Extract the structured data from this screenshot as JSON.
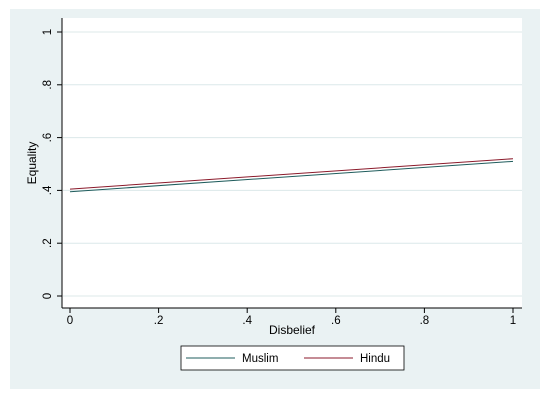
{
  "chart_data": {
    "type": "line",
    "title": "",
    "xlabel": "Disbelief",
    "ylabel": "Equality",
    "xlim": [
      0,
      1
    ],
    "ylim": [
      0,
      1
    ],
    "x_ticks": [
      0,
      0.2,
      0.4,
      0.6,
      0.8,
      1
    ],
    "x_tick_labels": [
      "0",
      ".2",
      ".4",
      ".6",
      ".8",
      "1"
    ],
    "y_ticks": [
      0,
      0.2,
      0.4,
      0.6,
      0.8,
      1
    ],
    "y_tick_labels": [
      "0",
      ".2",
      ".4",
      ".6",
      ".8",
      "1"
    ],
    "grid": true,
    "legend_position": "bottom",
    "series": [
      {
        "name": "Muslim",
        "color": "#1f5c5c",
        "x": [
          0,
          1
        ],
        "y": [
          0.395,
          0.51
        ]
      },
      {
        "name": "Hindu",
        "color": "#8b1a2b",
        "x": [
          0,
          1
        ],
        "y": [
          0.405,
          0.52
        ]
      }
    ],
    "colors": {
      "background": "#eaf2f3",
      "plot_background": "#ffffff",
      "grid": "#dce8ea"
    }
  }
}
